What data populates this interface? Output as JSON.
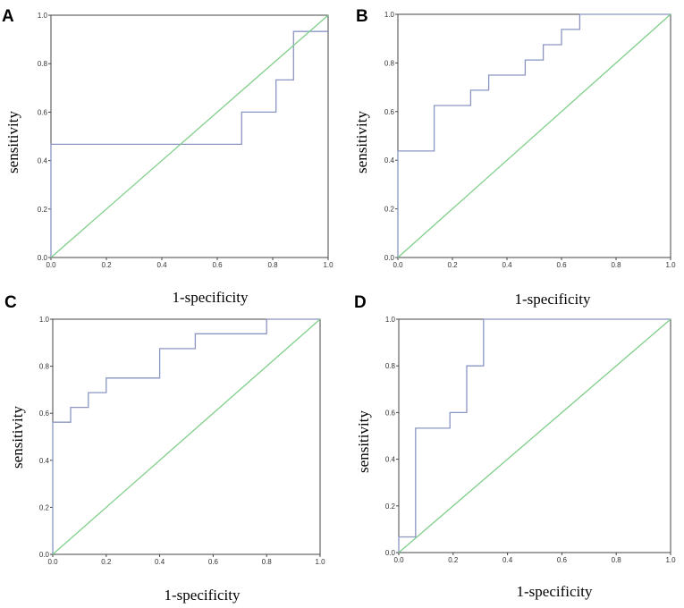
{
  "chart_data": [
    {
      "panel": "A",
      "type": "line",
      "xlabel": "1-specificity",
      "ylabel": "sensitivity",
      "xlim": [
        0,
        1
      ],
      "ylim": [
        0,
        1
      ],
      "xticks": [
        "0.0",
        "0.2",
        "0.4",
        "0.6",
        "0.8",
        "1.0"
      ],
      "yticks": [
        "0.0",
        "0.2",
        "0.4",
        "0.6",
        "0.8",
        "1.0"
      ],
      "series": [
        {
          "name": "ROC curve",
          "color": "#8a95c2",
          "x": [
            0,
            0,
            0.688,
            0.688,
            0.812,
            0.812,
            0.875,
            0.875,
            1.0
          ],
          "y": [
            0,
            0.467,
            0.467,
            0.6,
            0.6,
            0.733,
            0.733,
            0.933,
            0.933
          ]
        },
        {
          "name": "Reference line",
          "color": "#7fcf8a",
          "x": [
            0,
            1
          ],
          "y": [
            0,
            1
          ]
        }
      ]
    },
    {
      "panel": "B",
      "type": "line",
      "xlabel": "1-specificity",
      "ylabel": "sensitivity",
      "xlim": [
        0,
        1
      ],
      "ylim": [
        0,
        1
      ],
      "xticks": [
        "0.0",
        "0.2",
        "0.4",
        "0.6",
        "0.8",
        "1.0"
      ],
      "yticks": [
        "0.0",
        "0.2",
        "0.4",
        "0.6",
        "0.8",
        "1.0"
      ],
      "series": [
        {
          "name": "ROC curve",
          "color": "#8a95c2",
          "x": [
            0,
            0,
            0.133,
            0.133,
            0.267,
            0.267,
            0.333,
            0.333,
            0.467,
            0.467,
            0.533,
            0.533,
            0.6,
            0.6,
            0.667,
            0.667,
            1.0
          ],
          "y": [
            0,
            0.438,
            0.438,
            0.625,
            0.625,
            0.688,
            0.688,
            0.75,
            0.75,
            0.812,
            0.812,
            0.875,
            0.875,
            0.938,
            0.938,
            1.0,
            1.0
          ]
        },
        {
          "name": "Reference line",
          "color": "#7fcf8a",
          "x": [
            0,
            1
          ],
          "y": [
            0,
            1
          ]
        }
      ]
    },
    {
      "panel": "C",
      "type": "line",
      "xlabel": "1-specificity",
      "ylabel": "sensitivity",
      "xlim": [
        0,
        1
      ],
      "ylim": [
        0,
        1
      ],
      "xticks": [
        "0.0",
        "0.2",
        "0.4",
        "0.6",
        "0.8",
        "1.0"
      ],
      "yticks": [
        "0.0",
        "0.2",
        "0.4",
        "0.6",
        "0.8",
        "1.0"
      ],
      "series": [
        {
          "name": "ROC curve",
          "color": "#8a95c2",
          "x": [
            0,
            0,
            0.067,
            0.067,
            0.133,
            0.133,
            0.2,
            0.2,
            0.4,
            0.4,
            0.533,
            0.533,
            0.8,
            0.8,
            1.0
          ],
          "y": [
            0,
            0.562,
            0.562,
            0.625,
            0.625,
            0.688,
            0.688,
            0.75,
            0.75,
            0.875,
            0.875,
            0.938,
            0.938,
            1.0,
            1.0
          ]
        },
        {
          "name": "Reference line",
          "color": "#7fcf8a",
          "x": [
            0,
            1
          ],
          "y": [
            0,
            1
          ]
        }
      ]
    },
    {
      "panel": "D",
      "type": "line",
      "xlabel": "1-specificity",
      "ylabel": "sensitivity",
      "xlim": [
        0,
        1
      ],
      "ylim": [
        0,
        1
      ],
      "xticks": [
        "0.0",
        "0.2",
        "0.4",
        "0.6",
        "0.8",
        "1.0"
      ],
      "yticks": [
        "0.0",
        "0.2",
        "0.4",
        "0.6",
        "0.8",
        "1.0"
      ],
      "series": [
        {
          "name": "ROC curve",
          "color": "#8a95c2",
          "x": [
            0,
            0,
            0.062,
            0.062,
            0.188,
            0.188,
            0.25,
            0.25,
            0.312,
            0.312,
            1.0
          ],
          "y": [
            0,
            0.067,
            0.067,
            0.533,
            0.533,
            0.6,
            0.6,
            0.8,
            0.8,
            1.0,
            1.0
          ]
        },
        {
          "name": "Reference line",
          "color": "#7fcf8a",
          "x": [
            0,
            1
          ],
          "y": [
            0,
            1
          ]
        }
      ]
    }
  ]
}
